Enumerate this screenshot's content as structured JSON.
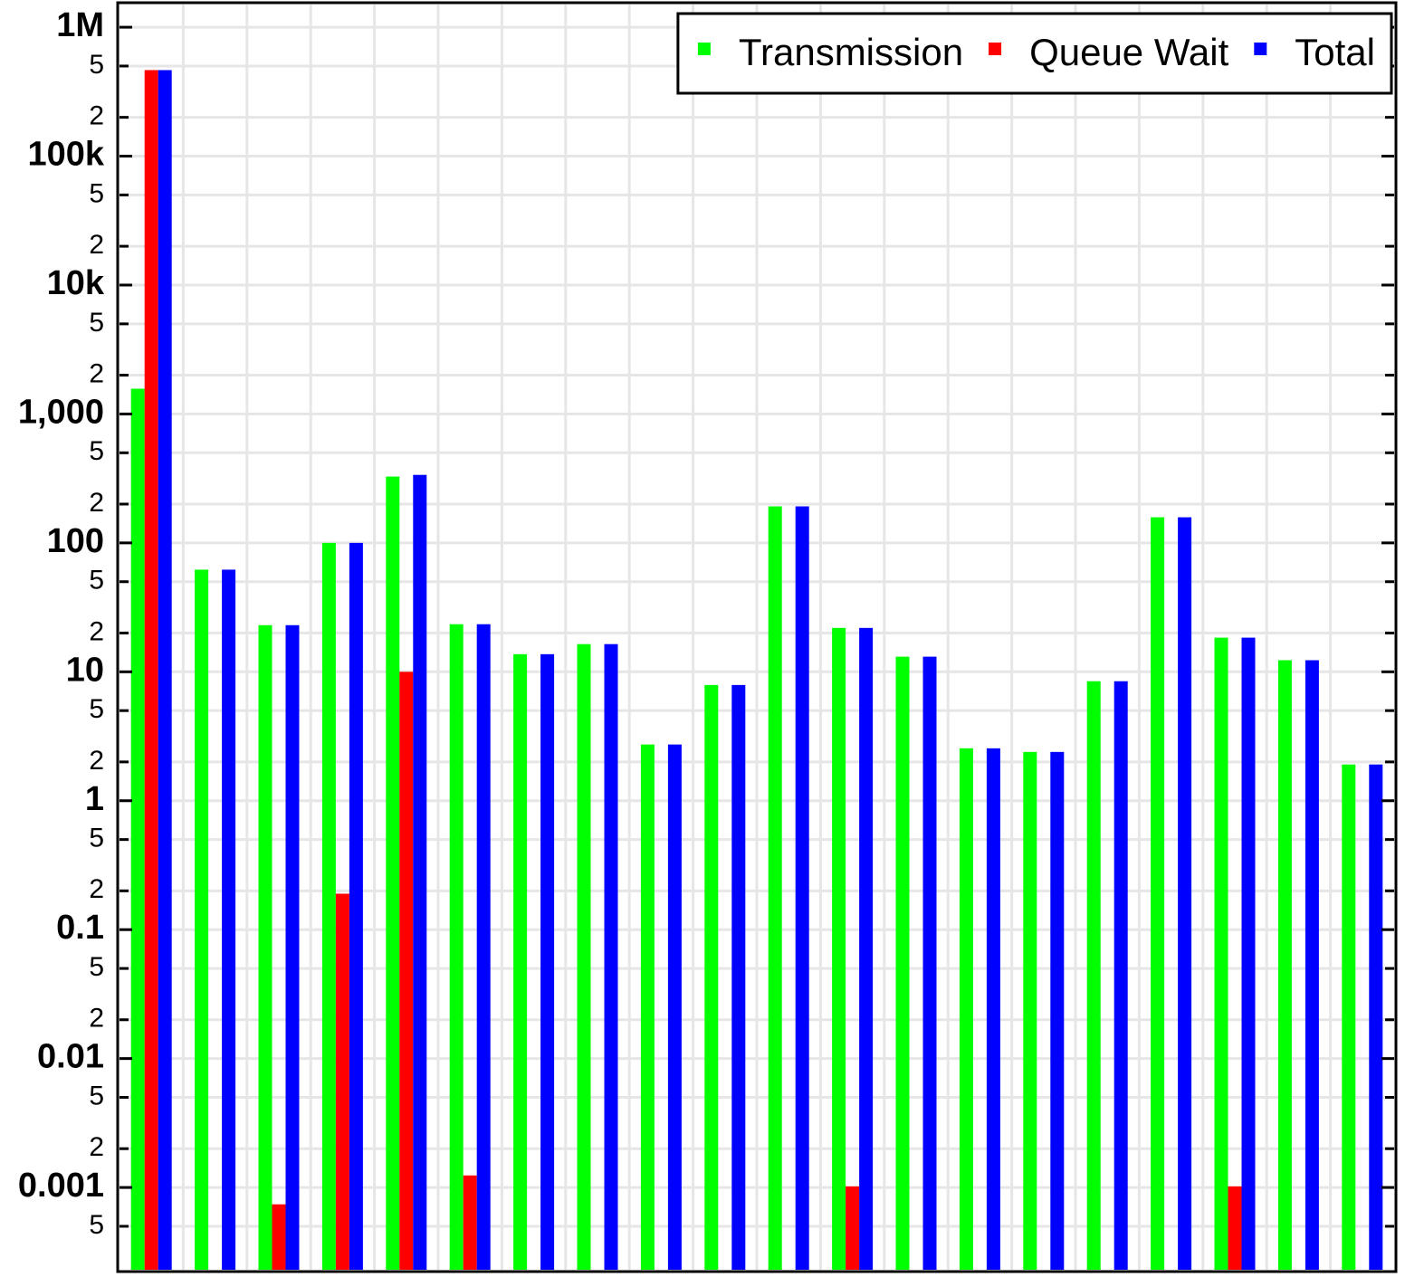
{
  "chart_data": {
    "type": "bar",
    "categories": [
      null,
      null,
      null,
      null,
      null,
      null,
      null,
      null,
      null,
      null,
      null,
      null,
      null,
      null,
      null,
      null,
      null,
      null,
      null,
      null
    ],
    "series": [
      {
        "name": "Transmission",
        "color": "#00ff00",
        "values": [
          1570,
          62,
          23,
          100,
          327,
          23.4,
          13.7,
          16.4,
          2.73,
          7.9,
          192,
          21.9,
          13.1,
          2.55,
          2.39,
          8.45,
          158,
          18.4,
          12.3,
          1.91
        ]
      },
      {
        "name": "Queue Wait",
        "color": "#ff0000",
        "values": [
          465000,
          null,
          0.00074,
          0.19,
          10,
          0.00124,
          null,
          null,
          null,
          null,
          null,
          0.00102,
          null,
          null,
          null,
          null,
          null,
          0.00102,
          null,
          null
        ]
      },
      {
        "name": "Total",
        "color": "#0000ff",
        "values": [
          465000,
          62,
          23,
          100,
          337,
          23.4,
          13.7,
          16.4,
          2.73,
          7.9,
          192,
          21.9,
          13.1,
          2.55,
          2.39,
          8.45,
          158,
          18.4,
          12.3,
          1.91
        ]
      }
    ],
    "log_scale": true,
    "ylim": [
      0.00023,
      1500000
    ],
    "yticks": [
      {
        "value": 0.0005,
        "label": "5"
      },
      0.001,
      {
        "value": 0.002,
        "label": "2"
      },
      {
        "value": 0.005,
        "label": "5"
      },
      0.01,
      {
        "value": 0.02,
        "label": "2"
      },
      {
        "value": 0.05,
        "label": "5"
      },
      0.1,
      {
        "value": 0.2,
        "label": "2"
      },
      {
        "value": 0.5,
        "label": "5"
      },
      1,
      2,
      5,
      10,
      {
        "value": 20,
        "label": "2"
      },
      {
        "value": 50,
        "label": "5"
      },
      100,
      {
        "value": 200,
        "label": "2"
      },
      {
        "value": 500,
        "label": "5"
      },
      {
        "value": 1000,
        "label": "1,000"
      },
      {
        "value": 2000,
        "label": "2"
      },
      {
        "value": 5000,
        "label": "5"
      },
      {
        "value": 10000,
        "label": "10k"
      },
      {
        "value": 20000,
        "label": "2"
      },
      {
        "value": 50000,
        "label": "5"
      },
      {
        "value": 100000,
        "label": "100k"
      },
      {
        "value": 200000,
        "label": "2"
      },
      {
        "value": 500000,
        "label": "5"
      },
      {
        "value": 1000000,
        "label": "1M"
      }
    ],
    "grid": true,
    "legend": "upper right"
  }
}
